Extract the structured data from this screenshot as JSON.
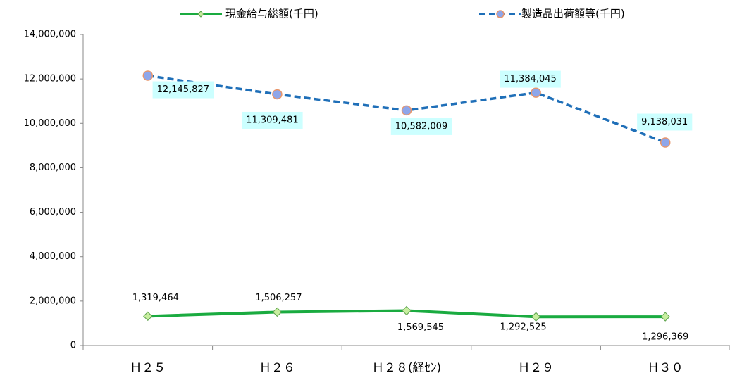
{
  "chart_data": {
    "type": "line",
    "categories": [
      "Ｈ２５",
      "Ｈ２６",
      "Ｈ２８(経ｾﾝ)",
      "Ｈ２９",
      "Ｈ３０"
    ],
    "series": [
      {
        "name": "現金給与総額(千円)",
        "color": "#1aab40",
        "values": [
          1319464,
          1506257,
          1569545,
          1292525,
          1296369
        ],
        "value_labels": [
          "1,319,464",
          "1,506,257",
          "1,569,545",
          "1,292,525",
          "1,296,369"
        ]
      },
      {
        "name": "製造品出荷額等(千円)",
        "color": "#1f6fb8",
        "values": [
          12145827,
          11309481,
          10582009,
          11384045,
          9138031
        ],
        "value_labels": [
          "12,145,827",
          "11,309,481",
          "10,582,009",
          "11,384,045",
          "9,138,031"
        ]
      }
    ],
    "ylim": [
      0,
      14000000
    ],
    "yticks": [
      0,
      {
        "value": 2000000,
        "label": "2,000,000"
      },
      {
        "value": 4000000,
        "label": "4,000,000"
      },
      {
        "value": 6000000,
        "label": "6,000,000"
      },
      {
        "value": 8000000,
        "label": "8,000,000"
      },
      {
        "value": 10000000,
        "label": "10,000,000"
      },
      {
        "value": 12000000,
        "label": "12,000,000"
      },
      {
        "value": 14000000,
        "label": "14,000,000"
      }
    ],
    "grid": false,
    "legend": "top"
  }
}
